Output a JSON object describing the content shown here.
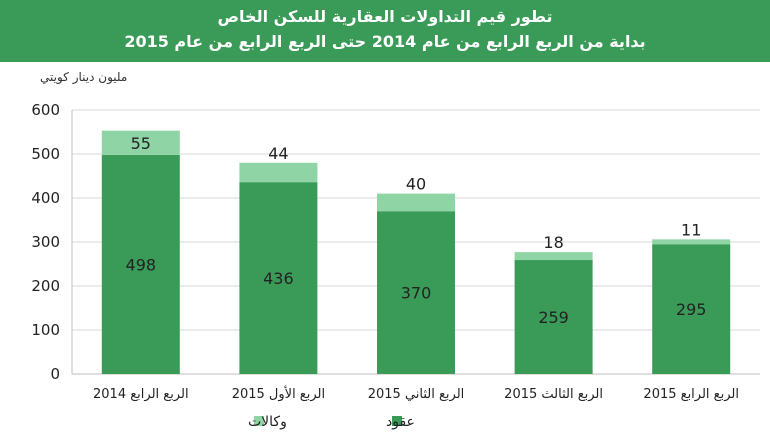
{
  "header": {
    "title_line1": "تطور قيم التداولات العقارية للسكن الخاص",
    "title_line2": "بداية من الربع الرابع من عام 2014 حتى الربع الرابع من عام 2015"
  },
  "colors": {
    "header_bg": "#3a9a58",
    "contracts": "#3a9a58",
    "agencies": "#8fd4a4"
  },
  "chart_data": {
    "type": "bar",
    "stacked": true,
    "unit_label": "مليون دينار كويتي",
    "categories": [
      "الربع الرابع 2014",
      "الربع الأول 2015",
      "الربع الثاني 2015",
      "الربع الثالث 2015",
      "الربع الرابع 2015"
    ],
    "series": [
      {
        "name": "عقود",
        "values": [
          498,
          436,
          370,
          259,
          295
        ]
      },
      {
        "name": "وكالات",
        "values": [
          55,
          44,
          40,
          18,
          11
        ]
      }
    ],
    "ylim": [
      0,
      600
    ],
    "yticks": [
      0,
      100,
      200,
      300,
      400,
      500,
      600
    ],
    "grid": true,
    "legend_position": "bottom"
  }
}
